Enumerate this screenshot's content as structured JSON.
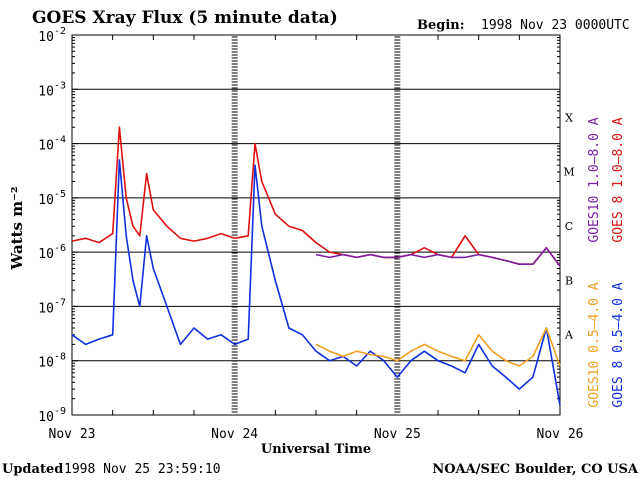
{
  "header": {
    "title": "GOES Xray Flux (5 minute data)",
    "begin_label": "Begin:",
    "begin_value": "1998 Nov 23 0000UTC"
  },
  "footer": {
    "updated_label": "Updated",
    "updated_value": "1998 Nov 25 23:59:10",
    "credit": "NOAA/SEC Boulder, CO USA"
  },
  "colors": {
    "goes10_long": "#7a1fa2",
    "goes8_long": "#e01010",
    "goes10_short": "#f0a020",
    "goes8_short": "#1030e0",
    "axis": "#000000"
  },
  "chart_data": {
    "type": "line",
    "title": "GOES Xray Flux (5 minute data)",
    "xlabel": "Universal Time",
    "ylabel": "Watts m⁻²",
    "y_scale": "log",
    "ylim": [
      1e-09,
      0.01
    ],
    "xlim": [
      "1998-11-23T00:00",
      "1998-11-26T00:00"
    ],
    "x_ticks": [
      "Nov 23",
      "Nov 24",
      "Nov 25",
      "Nov 26"
    ],
    "y_ticks": [
      {
        "base": "10",
        "exp": "-9"
      },
      {
        "base": "10",
        "exp": "-8"
      },
      {
        "base": "10",
        "exp": "-7"
      },
      {
        "base": "10",
        "exp": "-6"
      },
      {
        "base": "10",
        "exp": "-5"
      },
      {
        "base": "10",
        "exp": "-4"
      },
      {
        "base": "10",
        "exp": "-3"
      },
      {
        "base": "10",
        "exp": "-2"
      }
    ],
    "flare_classes": [
      {
        "label": "A",
        "flux": 1e-08
      },
      {
        "label": "B",
        "flux": 1e-07
      },
      {
        "label": "C",
        "flux": 1e-06
      },
      {
        "label": "M",
        "flux": 1e-05
      },
      {
        "label": "X",
        "flux": 0.0001
      }
    ],
    "legend_placement": "right-side-vertical",
    "series": [
      {
        "name": "GOES10 1.0–8.0 A",
        "color": "#7a1fa2",
        "x": [
          "1998-11-24T12:00",
          "1998-11-24T14:00",
          "1998-11-24T16:00",
          "1998-11-24T18:00",
          "1998-11-24T20:00",
          "1998-11-24T22:00",
          "1998-11-25T00:00",
          "1998-11-25T02:00",
          "1998-11-25T04:00",
          "1998-11-25T06:00",
          "1998-11-25T08:00",
          "1998-11-25T10:00",
          "1998-11-25T12:00",
          "1998-11-25T14:00",
          "1998-11-25T16:00",
          "1998-11-25T18:00",
          "1998-11-25T20:00",
          "1998-11-25T22:00",
          "1998-11-26T00:00"
        ],
        "y": [
          9e-07,
          8e-07,
          9e-07,
          8e-07,
          9e-07,
          8e-07,
          8e-07,
          9e-07,
          8e-07,
          9e-07,
          8e-07,
          8e-07,
          9e-07,
          8e-07,
          7e-07,
          6e-07,
          6e-07,
          1.2e-06,
          5.5e-07
        ]
      },
      {
        "name": "GOES 8 1.0–8.0 A",
        "color": "#e01010",
        "x": [
          "1998-11-23T00:00",
          "1998-11-23T02:00",
          "1998-11-23T04:00",
          "1998-11-23T06:00",
          "1998-11-23T07:00",
          "1998-11-23T08:00",
          "1998-11-23T09:00",
          "1998-11-23T10:00",
          "1998-11-23T11:00",
          "1998-11-23T12:00",
          "1998-11-23T14:00",
          "1998-11-23T16:00",
          "1998-11-23T18:00",
          "1998-11-23T20:00",
          "1998-11-23T22:00",
          "1998-11-24T00:00",
          "1998-11-24T02:00",
          "1998-11-24T03:00",
          "1998-11-24T04:00",
          "1998-11-24T06:00",
          "1998-11-24T08:00",
          "1998-11-24T10:00",
          "1998-11-24T12:00",
          "1998-11-24T14:00",
          "1998-11-24T16:00",
          "1998-11-24T18:00",
          "1998-11-24T20:00",
          "1998-11-24T22:00",
          "1998-11-25T00:00",
          "1998-11-25T02:00",
          "1998-11-25T04:00",
          "1998-11-25T06:00",
          "1998-11-25T08:00",
          "1998-11-25T10:00",
          "1998-11-25T12:00",
          "1998-11-25T14:00",
          "1998-11-25T16:00",
          "1998-11-25T18:00",
          "1998-11-25T20:00",
          "1998-11-25T22:00",
          "1998-11-26T00:00"
        ],
        "y": [
          1.6e-06,
          1.8e-06,
          1.5e-06,
          2.2e-06,
          0.0002,
          1e-05,
          3e-06,
          2e-06,
          2.8e-05,
          6e-06,
          3e-06,
          1.8e-06,
          1.6e-06,
          1.8e-06,
          2.2e-06,
          1.8e-06,
          2e-06,
          0.0001,
          2e-05,
          5e-06,
          3e-06,
          2.5e-06,
          1.5e-06,
          1e-06,
          9e-07,
          8e-07,
          9e-07,
          8e-07,
          8e-07,
          9e-07,
          1.2e-06,
          9e-07,
          8e-07,
          2e-06,
          9e-07,
          8e-07,
          7e-07,
          6e-07,
          6e-07,
          1.2e-06,
          5.5e-07
        ]
      },
      {
        "name": "GOES10 0.5–4.0 A",
        "color": "#f0a020",
        "x": [
          "1998-11-24T12:00",
          "1998-11-24T14:00",
          "1998-11-24T16:00",
          "1998-11-24T18:00",
          "1998-11-24T20:00",
          "1998-11-24T22:00",
          "1998-11-25T00:00",
          "1998-11-25T02:00",
          "1998-11-25T04:00",
          "1998-11-25T06:00",
          "1998-11-25T08:00",
          "1998-11-25T10:00",
          "1998-11-25T12:00",
          "1998-11-25T14:00",
          "1998-11-25T16:00",
          "1998-11-25T18:00",
          "1998-11-25T20:00",
          "1998-11-25T22:00",
          "1998-11-26T00:00"
        ],
        "y": [
          2e-08,
          1.5e-08,
          1.2e-08,
          1.5e-08,
          1.3e-08,
          1.2e-08,
          1e-08,
          1.5e-08,
          2e-08,
          1.5e-08,
          1.2e-08,
          1e-08,
          3e-08,
          1.5e-08,
          1e-08,
          8e-09,
          1.2e-08,
          4e-08,
          8e-09
        ]
      },
      {
        "name": "GOES 8 0.5–4.0 A",
        "color": "#1030e0",
        "x": [
          "1998-11-23T00:00",
          "1998-11-23T02:00",
          "1998-11-23T04:00",
          "1998-11-23T06:00",
          "1998-11-23T07:00",
          "1998-11-23T08:00",
          "1998-11-23T09:00",
          "1998-11-23T10:00",
          "1998-11-23T11:00",
          "1998-11-23T12:00",
          "1998-11-23T14:00",
          "1998-11-23T16:00",
          "1998-11-23T18:00",
          "1998-11-23T20:00",
          "1998-11-23T22:00",
          "1998-11-24T00:00",
          "1998-11-24T02:00",
          "1998-11-24T03:00",
          "1998-11-24T04:00",
          "1998-11-24T06:00",
          "1998-11-24T08:00",
          "1998-11-24T10:00",
          "1998-11-24T12:00",
          "1998-11-24T14:00",
          "1998-11-24T16:00",
          "1998-11-24T18:00",
          "1998-11-24T20:00",
          "1998-11-24T22:00",
          "1998-11-25T00:00",
          "1998-11-25T02:00",
          "1998-11-25T04:00",
          "1998-11-25T06:00",
          "1998-11-25T08:00",
          "1998-11-25T10:00",
          "1998-11-25T12:00",
          "1998-11-25T14:00",
          "1998-11-25T16:00",
          "1998-11-25T18:00",
          "1998-11-25T20:00",
          "1998-11-25T22:00",
          "1998-11-26T00:00"
        ],
        "y": [
          3e-08,
          2e-08,
          2.5e-08,
          3e-08,
          5e-05,
          2e-06,
          3e-07,
          1e-07,
          2e-06,
          5e-07,
          1e-07,
          2e-08,
          4e-08,
          2.5e-08,
          3e-08,
          2e-08,
          2.5e-08,
          4e-05,
          3e-06,
          3e-07,
          4e-08,
          3e-08,
          1.5e-08,
          1e-08,
          1.2e-08,
          8e-09,
          1.5e-08,
          1e-08,
          5e-09,
          1e-08,
          1.5e-08,
          1e-08,
          8e-09,
          6e-09,
          2e-08,
          8e-09,
          5e-09,
          3e-09,
          5e-09,
          4e-08,
          1.5e-09
        ]
      }
    ]
  }
}
